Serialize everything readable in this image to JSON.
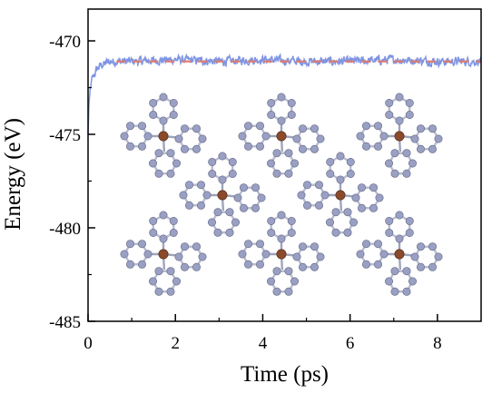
{
  "chart_data": {
    "type": "line",
    "xlabel": "Time (ps)",
    "ylabel": "Energy (eV)",
    "xlim": [
      0,
      9
    ],
    "ylim": [
      -485,
      -468.3
    ],
    "x_ticks": [
      0,
      2,
      4,
      6,
      8
    ],
    "x_tick_labels": [
      "0",
      "2",
      "4",
      "6",
      "8"
    ],
    "y_ticks": [
      -485,
      -480,
      -475,
      -470
    ],
    "y_tick_labels": [
      "-485",
      "-480",
      "-475",
      "-470"
    ],
    "grid": false,
    "series": [
      {
        "color": "#7f95e3",
        "style": "fluctuating trace",
        "x": [
          0,
          0.02,
          0.05,
          0.1,
          0.15,
          0.2,
          0.3,
          0.5,
          1.0,
          2.0,
          3.0,
          4.0,
          5.0,
          6.0,
          7.0,
          8.0,
          9.0
        ],
        "values": [
          -475.0,
          -473.4,
          -472.6,
          -472.0,
          -471.8,
          -471.5,
          -471.3,
          -471.1,
          -471.1,
          -471.0,
          -471.1,
          -471.0,
          -471.1,
          -471.1,
          -471.0,
          -471.1,
          -471.1
        ],
        "fluctuation_amplitude": 0.35
      },
      {
        "color": "#e07a6e",
        "style": "dashed",
        "x": [
          0.65,
          9.0
        ],
        "values": [
          -471.1,
          -471.1
        ]
      }
    ],
    "inset": {
      "type": "molecular-structure",
      "description_icon": "molecule-lattice-icon",
      "center_atom_color": "#8b4a2b",
      "atom_color": "#9aa0c4"
    }
  }
}
